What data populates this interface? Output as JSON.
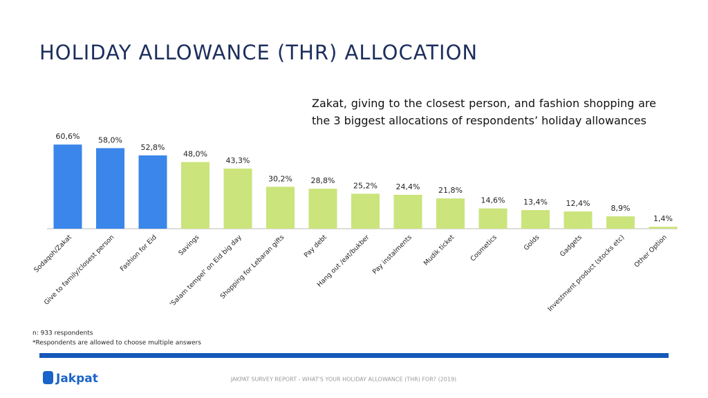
{
  "chart_data": {
    "type": "bar",
    "title": "HOLIDAY ALLOWANCE (THR) ALLOCATION",
    "annotation": "Zakat, giving to the closest person, and fashion shopping are the 3 biggest allocations of respondents’ holiday allowances",
    "categories": [
      "Sodaqoh/Zakat",
      "Give to family/closest person",
      "Fashion for Eid",
      "Savings",
      "'Salam tempel' on Eid big day",
      "Shopping for Lebaran gifts",
      "Pay debt",
      "Hang out /eat/bukber",
      "Pay instalments",
      "Mudik ticket",
      "Cosmetics",
      "Golds",
      "Gadgets",
      "Investment product (stocks etc)",
      "Other Option"
    ],
    "values": [
      60.6,
      58.0,
      52.8,
      48.0,
      43.3,
      30.2,
      28.8,
      25.2,
      24.4,
      21.8,
      14.6,
      13.4,
      12.4,
      8.9,
      1.4
    ],
    "value_labels": [
      "60,6%",
      "58,0%",
      "52,8%",
      "48,0%",
      "43,3%",
      "30,2%",
      "28,8%",
      "25,2%",
      "24,4%",
      "21,8%",
      "14,6%",
      "13,4%",
      "12,4%",
      "8,9%",
      "1,4%"
    ],
    "colors": [
      "#3a86ea",
      "#3a86ea",
      "#3a86ea",
      "#cbe47c",
      "#cbe47c",
      "#cbe47c",
      "#cbe47c",
      "#cbe47c",
      "#cbe47c",
      "#cbe47c",
      "#cbe47c",
      "#cbe47c",
      "#cbe47c",
      "#cbe47c",
      "#cbe47c"
    ],
    "notes": [
      "n: 933 respondents",
      "*Respondents are allowed to choose multiple answers"
    ]
  },
  "footer": {
    "report": "JAKPAT  SURVEY REPORT - WHAT'S YOUR HOLIDAY ALLOWANCE (THR) FOR? (2019)",
    "logo": "Jakpat"
  }
}
